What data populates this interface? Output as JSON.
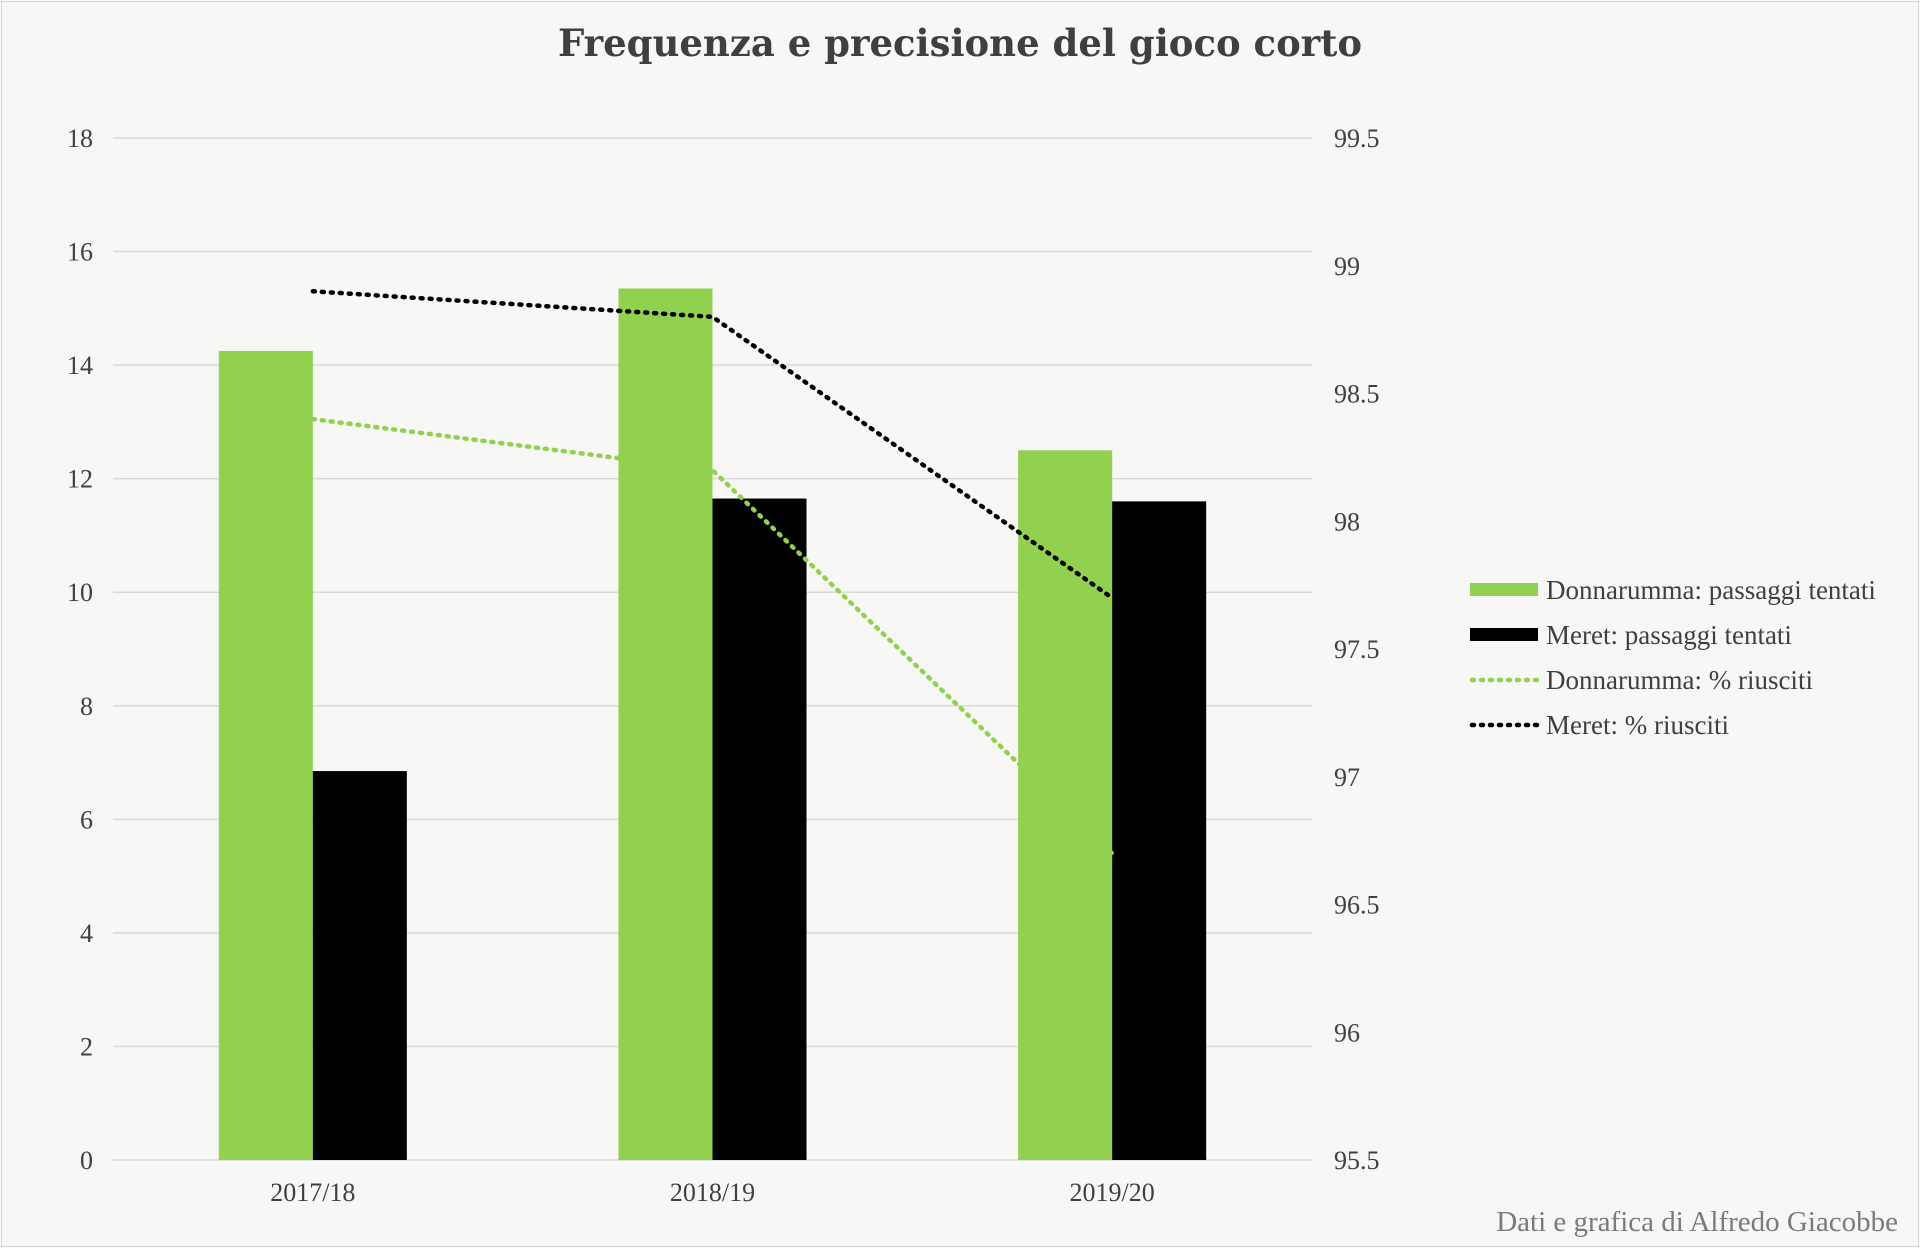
{
  "chart_data": {
    "type": "bar",
    "title": "Frequenza e precisione del gioco corto",
    "categories": [
      "2017/18",
      "2018/19",
      "2019/20"
    ],
    "series": [
      {
        "name": "Donnarumma: passaggi tentati",
        "kind": "bar",
        "axis": "left",
        "color": "#92d050",
        "values": [
          14.25,
          15.35,
          12.5
        ]
      },
      {
        "name": "Meret: passaggi tentati",
        "kind": "bar",
        "axis": "left",
        "color": "#000000",
        "values": [
          6.85,
          11.65,
          11.6
        ]
      },
      {
        "name": "Donnarumma: % riusciti",
        "kind": "line",
        "style": "dotted",
        "axis": "right",
        "color": "#92d050",
        "values": [
          98.4,
          98.2,
          96.7
        ]
      },
      {
        "name": "Meret: % riusciti",
        "kind": "line",
        "style": "dotted",
        "axis": "right",
        "color": "#000000",
        "values": [
          98.9,
          98.8,
          97.7
        ]
      }
    ],
    "y_left": {
      "min": 0,
      "max": 18,
      "ticks": [
        "0",
        "2",
        "4",
        "6",
        "8",
        "10",
        "12",
        "14",
        "16",
        "18"
      ]
    },
    "y_right": {
      "min": 95.5,
      "max": 99.5,
      "ticks": [
        "95.5",
        "96",
        "96.5",
        "97",
        "97.5",
        "98",
        "98.5",
        "99",
        "99.5"
      ]
    },
    "grid": true,
    "legend_position": "right",
    "credit": "Dati e grafica di Alfredo Giacobbe"
  }
}
